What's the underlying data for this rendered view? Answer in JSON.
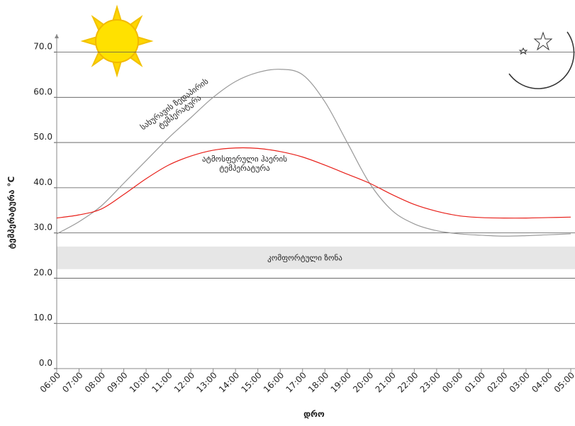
{
  "chart_data": {
    "type": "line",
    "x_label": "დრო",
    "y_label": "ტემპერატურა °C",
    "categories": [
      "06:00",
      "07:00",
      "08:00",
      "09:00",
      "10:00",
      "11:00",
      "12:00",
      "13:00",
      "14:00",
      "15:00",
      "16:00",
      "17:00",
      "18:00",
      "19:00",
      "20:00",
      "21:00",
      "22:00",
      "23:00",
      "00:00",
      "01:00",
      "02:00",
      "03:00",
      "04:00",
      "05:00"
    ],
    "series": [
      {
        "color": "#999999",
        "values": [
          29.8,
          32.5,
          36,
          41,
          46,
          51,
          55.5,
          60,
          63.5,
          65.5,
          66.2,
          65,
          59,
          50,
          41,
          35,
          32,
          30.5,
          29.8,
          29.5,
          29.3,
          29.4,
          29.6,
          29.8
        ]
      },
      {
        "color": "#e8201a",
        "values": [
          33.3,
          34,
          35.3,
          38.5,
          42,
          45,
          47,
          48.3,
          48.8,
          48.7,
          48,
          46.8,
          45,
          43,
          41,
          38.5,
          36.3,
          34.8,
          33.8,
          33.4,
          33.3,
          33.3,
          33.4,
          33.5
        ]
      }
    ],
    "annotations": [
      {
        "lines": [
          "სახურავის ზედაპირის",
          "ტემპერატურა"
        ]
      },
      {
        "lines": [
          "ატმოსფერული ჰაერის",
          "ტემპერატურა"
        ]
      }
    ],
    "comfort_zone": {
      "label": "კომფორტული ზონა",
      "range": [
        22,
        27
      ],
      "color": "#e6e6e6"
    },
    "ylim": [
      0,
      74
    ],
    "yticks": [
      {
        "value": 0,
        "label": "0.0"
      },
      {
        "value": 10,
        "label": "10.0"
      },
      {
        "value": 20,
        "label": "20.0"
      },
      {
        "value": 30,
        "label": "30.0"
      },
      {
        "value": 40,
        "label": "40.0"
      },
      {
        "value": 50,
        "label": "50.0"
      },
      {
        "value": 60,
        "label": "60.0"
      },
      {
        "value": 70,
        "label": "70.0"
      }
    ],
    "grid": true
  }
}
